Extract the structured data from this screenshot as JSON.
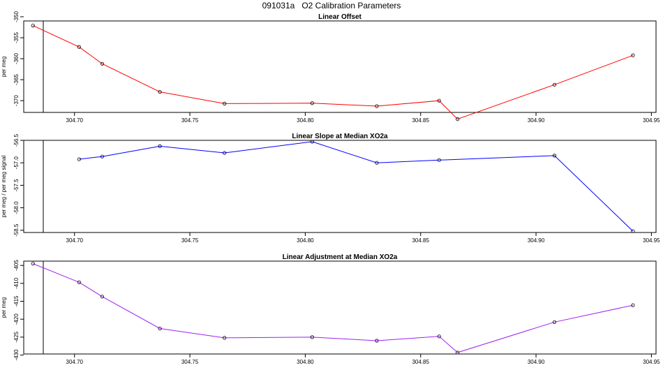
{
  "title": "091031a   O2 Calibration Parameters",
  "chart_data": [
    {
      "type": "line",
      "title": "Linear Offset",
      "xlabel": "",
      "ylabel": "per meg",
      "color": "#ff0000",
      "xlim": [
        304.678,
        304.952
      ],
      "ylim": [
        -372.8,
        -351.0
      ],
      "xticks": [
        "304.70",
        "304.75",
        "304.80",
        "304.85",
        "304.90",
        "304.95"
      ],
      "yticks": [
        "-350",
        "-355",
        "-360",
        "-365",
        "-370"
      ],
      "series": [
        {
          "x": [
            304.682,
            304.702,
            304.712,
            304.737,
            304.765,
            304.803,
            304.831,
            304.858,
            304.866,
            304.908,
            304.942
          ],
          "y": [
            -352.1,
            -357.2,
            -361.2,
            -367.9,
            -370.7,
            -370.6,
            -371.3,
            -370.0,
            -374.4,
            -366.2,
            -359.2
          ]
        }
      ]
    },
    {
      "type": "line",
      "title": "Linear Slope at Median XO2a",
      "xlabel": "",
      "ylabel": "per meg / per meg signal",
      "color": "#0000ff",
      "xlim": [
        304.678,
        304.952
      ],
      "ylim": [
        -58.55,
        -56.5
      ],
      "xticks": [
        "304.70",
        "304.75",
        "304.80",
        "304.85",
        "304.90",
        "304.95"
      ],
      "yticks": [
        "-56.5",
        "-57.0",
        "-57.5",
        "-58.0",
        "-58.5"
      ],
      "series": [
        {
          "x": [
            304.702,
            304.712,
            304.737,
            304.765,
            304.803,
            304.831,
            304.858,
            304.908,
            304.942
          ],
          "y": [
            -56.92,
            -56.86,
            -56.63,
            -56.78,
            -56.53,
            -57.0,
            -56.94,
            -56.84,
            -58.52
          ]
        }
      ]
    },
    {
      "type": "line",
      "title": "Linear Adjustment at Median XO2a",
      "xlabel": "",
      "ylabel": "per meg",
      "color": "#a020f0",
      "xlim": [
        304.678,
        304.952
      ],
      "ylim": [
        -429.7,
        -403.8
      ],
      "xticks": [
        "304.70",
        "304.75",
        "304.80",
        "304.85",
        "304.90",
        "304.95"
      ],
      "yticks": [
        "-405",
        "-410",
        "-415",
        "-420",
        "-425",
        "-430"
      ],
      "series": [
        {
          "x": [
            304.682,
            304.702,
            304.712,
            304.737,
            304.765,
            304.803,
            304.831,
            304.858,
            304.866,
            304.908,
            304.942
          ],
          "y": [
            -404.5,
            -409.7,
            -413.7,
            -422.6,
            -425.2,
            -425.0,
            -426.0,
            -424.8,
            -429.3,
            -420.8,
            -416.1
          ]
        }
      ]
    }
  ]
}
